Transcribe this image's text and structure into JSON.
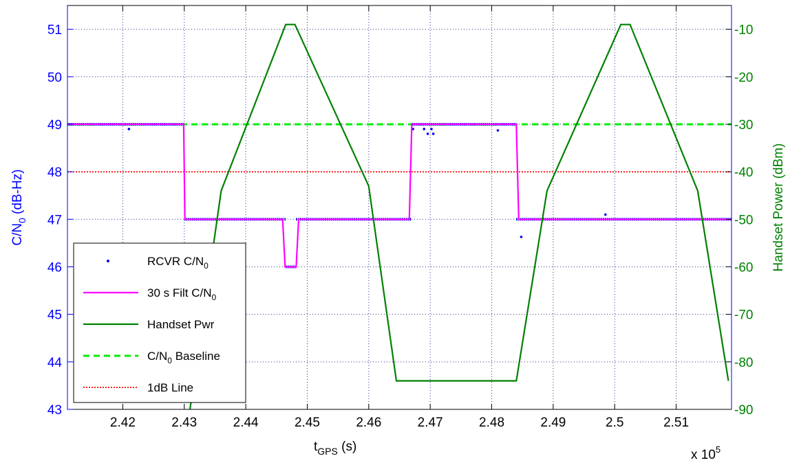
{
  "chart_data": {
    "type": "line",
    "x_range": [
      241100,
      251900
    ],
    "x_ticks": [
      242000,
      243000,
      244000,
      245000,
      246000,
      247000,
      248000,
      249000,
      250000,
      251000
    ],
    "x_tick_labels": [
      "2.42",
      "2.43",
      "2.44",
      "2.45",
      "2.46",
      "2.47",
      "2.48",
      "2.49",
      "2.5",
      "2.51"
    ],
    "x_multiplier_label": "x 10",
    "x_multiplier_exp": "5",
    "xlabel": {
      "main": "t",
      "sub": "GPS",
      "unit": " (s)"
    },
    "y_left": {
      "range": [
        43,
        51.5
      ],
      "ticks": [
        43,
        44,
        45,
        46,
        47,
        48,
        49,
        50,
        51
      ],
      "tick_labels": [
        "43",
        "44",
        "45",
        "46",
        "47",
        "48",
        "49",
        "50",
        "51"
      ],
      "label": {
        "pre": "C/N",
        "sub": "0",
        "post": " (dB-Hz)"
      },
      "color": "#0000ff"
    },
    "y_right": {
      "range": [
        -90,
        -5
      ],
      "ticks": [
        -90,
        -80,
        -70,
        -60,
        -50,
        -40,
        -30,
        -20,
        -10
      ],
      "tick_labels": [
        "-90",
        "-80",
        "-70",
        "-60",
        "-50",
        "-40",
        "-30",
        "-20",
        "-10"
      ],
      "label": "Handset Power (dBm)",
      "color": "#008000"
    },
    "grid": true,
    "legend_position": "bottom-left",
    "series": [
      {
        "name": "RCVR C/N0",
        "legend": {
          "pre": "RCVR C/N",
          "sub": "0"
        },
        "style": "dots",
        "color": "#0000ff",
        "axis": "left",
        "segments": [
          {
            "x": [
              241100,
              243000
            ],
            "y": 49
          },
          {
            "x": [
              243000,
              244650
            ],
            "y": 47
          },
          {
            "x": [
              244650,
              244820
            ],
            "y": 46
          },
          {
            "x": [
              244820,
              246700
            ],
            "y": 47
          },
          {
            "x": [
              246700,
              248400
            ],
            "y": 49
          },
          {
            "x": [
              248400,
              251900
            ],
            "y": 47
          }
        ],
        "outliers": [
          [
            242100,
            48.9
          ],
          [
            246720,
            48.9
          ],
          [
            246900,
            48.9
          ],
          [
            246960,
            48.8
          ],
          [
            247020,
            48.9
          ],
          [
            247050,
            48.8
          ],
          [
            248100,
            48.87
          ],
          [
            248480,
            46.63
          ],
          [
            249850,
            47.1
          ]
        ]
      },
      {
        "name": "30 s Filt C/N0",
        "legend": {
          "pre": "30 s Filt C/N",
          "sub": "0"
        },
        "style": "solid",
        "color": "#ff00ff",
        "axis": "left",
        "x": [
          241100,
          242990,
          243010,
          244600,
          244640,
          244820,
          244860,
          246660,
          246700,
          248400,
          248440,
          251900
        ],
        "y": [
          49,
          49,
          47,
          47,
          46,
          46,
          47,
          47,
          49,
          49,
          47,
          47
        ]
      },
      {
        "name": "Handset Pwr",
        "legend": {
          "pre": "Handset Pwr"
        },
        "style": "solid",
        "color": "#008000",
        "axis": "right",
        "x": [
          243060,
          243600,
          244650,
          244800,
          246000,
          246450,
          248400,
          248900,
          250100,
          250250,
          251350,
          251850
        ],
        "y": [
          -93,
          -44,
          -9,
          -9,
          -43,
          -84,
          -84,
          -44,
          -9,
          -9,
          -44,
          -84
        ]
      },
      {
        "name": "C/N0 Baseline",
        "legend": {
          "pre": "C/N",
          "sub": "0",
          "post": " Baseline"
        },
        "style": "dashed",
        "color": "#00ee00",
        "axis": "left",
        "y_const": 49
      },
      {
        "name": "1dB Line",
        "legend": {
          "pre": "1dB Line"
        },
        "style": "dotted",
        "color": "#ff2020",
        "axis": "left",
        "y_const": 48
      }
    ]
  }
}
